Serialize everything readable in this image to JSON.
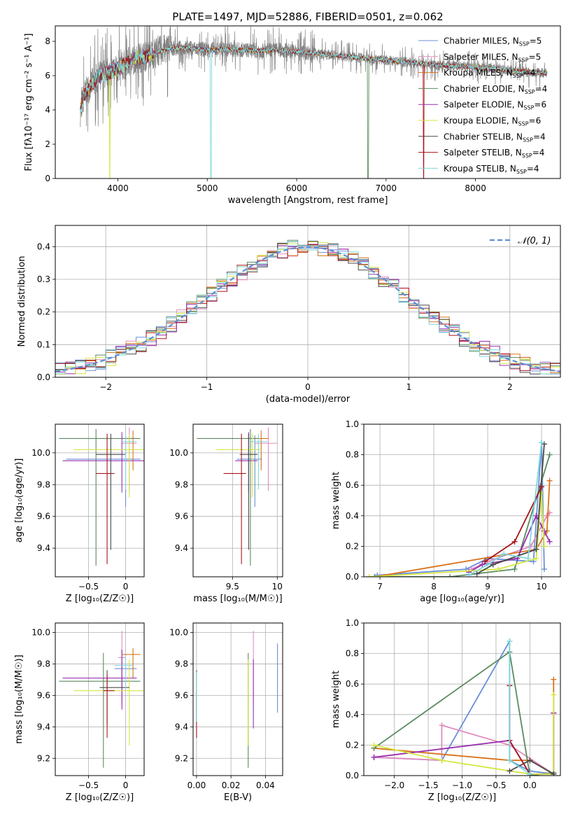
{
  "figure_title": "PLATE=1497, MJD=52886, FIBERID=0501, z=0.062",
  "colors": {
    "chabrier_miles": "#6a8fd8",
    "salpeter_miles": "#e18bbd",
    "kroupa_miles": "#d8731c",
    "chabrier_elodie": "#5a8a5f",
    "salpeter_elodie": "#9a2fb0",
    "kroupa_elodie": "#d4e640",
    "chabrier_stelib": "#4a4a4a",
    "salpeter_stelib": "#a8151c",
    "kroupa_stelib": "#80d8dc",
    "data": "#808080",
    "normal": "#5b8fd4"
  },
  "chart_data": [
    {
      "id": "spectrum",
      "type": "line",
      "title": "PLATE=1497, MJD=52886, FIBERID=0501, z=0.062",
      "xlabel": "wavelength [Angstrom, rest frame]",
      "ylabel": "Flux [fλ10⁻¹⁷ erg cm⁻² s⁻¹ A⁻¹]",
      "xlim": [
        3300,
        8950
      ],
      "ylim": [
        0,
        8.9
      ],
      "xticks": [
        4000,
        5000,
        6000,
        7000,
        8000
      ],
      "yticks": [
        0,
        2,
        4,
        6,
        8
      ],
      "grid": false,
      "legend_position": "right",
      "legend": [
        {
          "label": "Chabrier MILES, NSSP=5",
          "color": "chabrier_miles"
        },
        {
          "label": "Salpeter MILES, NSSP=5",
          "color": "salpeter_miles"
        },
        {
          "label": "Kroupa MILES, NSSP=4",
          "color": "kroupa_miles"
        },
        {
          "label": "Chabrier ELODIE, NSSP=4",
          "color": "chabrier_elodie"
        },
        {
          "label": "Salpeter ELODIE, NSSP=6",
          "color": "salpeter_elodie"
        },
        {
          "label": "Kroupa ELODIE, NSSP=6",
          "color": "kroupa_elodie"
        },
        {
          "label": "Chabrier STELIB, NSSP=4",
          "color": "chabrier_stelib"
        },
        {
          "label": "Salpeter STELIB, NSSP=4",
          "color": "salpeter_stelib"
        },
        {
          "label": "Kroupa STELIB, NSSP=4",
          "color": "kroupa_stelib"
        }
      ],
      "continuum": {
        "x": [
          3580,
          3620,
          3700,
          3800,
          3900,
          4000,
          4100,
          4200,
          4300,
          4400,
          4500,
          4600,
          4800,
          5000,
          5200,
          5400,
          5600,
          5800,
          6000,
          6200,
          6400,
          6600,
          6800,
          7000,
          7200,
          7400,
          7600,
          7800,
          8000,
          8200,
          8400,
          8600,
          8800
        ],
        "y": [
          3.9,
          4.8,
          5.5,
          6.0,
          6.2,
          6.4,
          6.7,
          7.0,
          7.1,
          7.3,
          7.5,
          7.6,
          7.6,
          7.5,
          7.55,
          7.5,
          7.45,
          7.5,
          7.4,
          7.3,
          7.2,
          7.1,
          7.0,
          6.9,
          6.8,
          6.7,
          6.6,
          6.55,
          6.5,
          6.4,
          6.3,
          6.2,
          6.15
        ]
      }
    },
    {
      "id": "residuals",
      "type": "bar",
      "xlabel": "(data-model)/error",
      "ylabel": "Normed distribution",
      "xlim": [
        -2.5,
        2.5
      ],
      "ylim": [
        0,
        0.465
      ],
      "xticks": [
        -2,
        -1,
        0,
        1,
        2
      ],
      "yticks": [
        0.0,
        0.1,
        0.2,
        0.3,
        0.4
      ],
      "grid": true,
      "legend_position": "top-right",
      "legend": [
        {
          "label": "𝒩(0, 1)",
          "color": "normal"
        }
      ],
      "bin_width": 0.1
    },
    {
      "id": "age_vs_Z",
      "type": "scatter",
      "xlabel": "Z [log₁₀(Z/Z☉)]",
      "ylabel": "age  [log₁₀(age/yr)]",
      "xlim": [
        -0.95,
        0.25
      ],
      "ylim": [
        9.22,
        10.18
      ],
      "xticks": [
        -0.5,
        0.0
      ],
      "yticks": [
        9.4,
        9.6,
        9.8,
        10.0
      ],
      "grid": true,
      "points": [
        {
          "series": "chabrier_miles",
          "x": 0.0,
          "y": 9.96,
          "xerr": [
            0.8,
            0.2
          ],
          "yerr": [
            0.3,
            0.15
          ]
        },
        {
          "series": "salpeter_miles",
          "x": 0.05,
          "y": 10.06,
          "xerr": [
            0.1,
            0.1
          ],
          "yerr": [
            0.3,
            0.1
          ]
        },
        {
          "series": "kroupa_miles",
          "x": 0.1,
          "y": 10.09,
          "xerr": [
            0.15,
            0.05
          ],
          "yerr": [
            0.2,
            0.05
          ]
        },
        {
          "series": "chabrier_elodie",
          "x": -0.4,
          "y": 10.09,
          "xerr": [
            0.5,
            0.6
          ],
          "yerr": [
            0.8,
            0.06
          ]
        },
        {
          "series": "salpeter_elodie",
          "x": -0.05,
          "y": 9.95,
          "xerr": [
            0.8,
            0.3
          ],
          "yerr": [
            0.2,
            0.18
          ]
        },
        {
          "series": "kroupa_elodie",
          "x": 0.05,
          "y": 10.02,
          "xerr": [
            0.75,
            0.25
          ],
          "yerr": [
            0.3,
            0.1
          ]
        },
        {
          "series": "chabrier_stelib",
          "x": -0.2,
          "y": 9.99,
          "xerr": [
            0.2,
            0.2
          ],
          "yerr": [
            0.6,
            0.13
          ]
        },
        {
          "series": "salpeter_stelib",
          "x": -0.25,
          "y": 9.87,
          "xerr": [
            0.15,
            0.1
          ],
          "yerr": [
            0.57,
            0.25
          ]
        },
        {
          "series": "kroupa_stelib",
          "x": 0.0,
          "y": 10.07,
          "xerr": [
            0.05,
            0.15
          ],
          "yerr": [
            0.3,
            0.05
          ]
        }
      ]
    },
    {
      "id": "age_vs_mass",
      "type": "scatter",
      "xlabel": "mass [log₁₀(M/M☉)]",
      "ylabel": "",
      "xlim": [
        9.06,
        10.06
      ],
      "ylim": [
        9.22,
        10.18
      ],
      "xticks": [
        9.5,
        10.0
      ],
      "yticks": [
        9.4,
        9.6,
        9.8,
        10.0
      ],
      "grid": true,
      "points": [
        {
          "series": "chabrier_miles",
          "x": 9.75,
          "y": 9.96,
          "xerr": [
            0.2,
            0.08
          ],
          "yerr": [
            0.3,
            0.15
          ]
        },
        {
          "series": "salpeter_miles",
          "x": 9.9,
          "y": 10.06,
          "xerr": [
            0.15,
            0.1
          ],
          "yerr": [
            0.3,
            0.1
          ]
        },
        {
          "series": "kroupa_miles",
          "x": 9.82,
          "y": 10.09,
          "xerr": [
            0.15,
            0.08
          ],
          "yerr": [
            0.2,
            0.05
          ]
        },
        {
          "series": "chabrier_elodie",
          "x": 9.7,
          "y": 10.09,
          "xerr": [
            0.6,
            0.1
          ],
          "yerr": [
            0.8,
            0.06
          ]
        },
        {
          "series": "salpeter_elodie",
          "x": 9.68,
          "y": 9.95,
          "xerr": [
            0.15,
            0.1
          ],
          "yerr": [
            0.2,
            0.18
          ]
        },
        {
          "series": "kroupa_elodie",
          "x": 9.72,
          "y": 10.02,
          "xerr": [
            0.4,
            0.1
          ],
          "yerr": [
            0.3,
            0.1
          ]
        },
        {
          "series": "chabrier_stelib",
          "x": 9.68,
          "y": 9.99,
          "xerr": [
            0.1,
            0.1
          ],
          "yerr": [
            0.6,
            0.13
          ]
        },
        {
          "series": "salpeter_stelib",
          "x": 9.6,
          "y": 9.87,
          "xerr": [
            0.2,
            0.05
          ],
          "yerr": [
            0.57,
            0.25
          ]
        },
        {
          "series": "kroupa_stelib",
          "x": 9.79,
          "y": 10.07,
          "xerr": [
            0.1,
            0.1
          ],
          "yerr": [
            0.3,
            0.05
          ]
        }
      ]
    },
    {
      "id": "weight_vs_age",
      "type": "line",
      "xlabel": "age  [log₁₀(age/yr)]",
      "ylabel": "mass weight",
      "xlim": [
        6.7,
        10.35
      ],
      "ylim": [
        0,
        1
      ],
      "xticks": [
        7,
        8,
        9,
        10
      ],
      "yticks": [
        0.0,
        0.2,
        0.4,
        0.6,
        0.8,
        1.0
      ],
      "grid": true,
      "series": [
        {
          "name": "chabrier_miles",
          "x": [
            6.95,
            8.6,
            9.0,
            9.85,
            10.0,
            10.05
          ],
          "y": [
            0.01,
            0.05,
            0.12,
            0.1,
            0.88,
            0.05
          ]
        },
        {
          "name": "salpeter_miles",
          "x": [
            8.7,
            9.0,
            9.8,
            10.1,
            10.15
          ],
          "y": [
            0.05,
            0.1,
            0.2,
            0.4,
            0.42
          ]
        },
        {
          "name": "kroupa_miles",
          "x": [
            6.9,
            9.9,
            10.1,
            10.15
          ],
          "y": [
            0.0,
            0.18,
            0.3,
            0.63
          ]
        },
        {
          "name": "chabrier_elodie",
          "x": [
            6.9,
            8.3,
            9.5,
            10.15
          ],
          "y": [
            0.0,
            0.0,
            0.05,
            0.8
          ]
        },
        {
          "name": "salpeter_elodie",
          "x": [
            8.65,
            8.9,
            9.55,
            9.9,
            10.05,
            10.15
          ],
          "y": [
            0.03,
            0.08,
            0.12,
            0.4,
            0.3,
            0.23
          ]
        },
        {
          "name": "kroupa_elodie",
          "x": [
            6.8,
            9.2,
            9.9,
            10.0,
            10.05
          ],
          "y": [
            0.0,
            0.05,
            0.12,
            0.55,
            0.2
          ]
        },
        {
          "name": "chabrier_stelib",
          "x": [
            8.8,
            9.1,
            9.9,
            10.05
          ],
          "y": [
            0.02,
            0.08,
            0.18,
            0.87
          ]
        },
        {
          "name": "salpeter_stelib",
          "x": [
            8.95,
            9.5,
            10.0
          ],
          "y": [
            0.1,
            0.23,
            0.59
          ]
        },
        {
          "name": "kroupa_stelib",
          "x": [
            8.65,
            9.0,
            9.3,
            9.75,
            10.0
          ],
          "y": [
            0.01,
            0.08,
            0.15,
            0.12,
            0.88
          ]
        }
      ]
    },
    {
      "id": "mass_vs_Z",
      "type": "scatter",
      "xlabel": "Z [log₁₀(Z/Z☉)]",
      "ylabel": "mass [log₁₀(M/M☉)]",
      "xlim": [
        -0.95,
        0.25
      ],
      "ylim": [
        9.09,
        10.06
      ],
      "xticks": [
        -0.5,
        0.0
      ],
      "yticks": [
        9.2,
        9.4,
        9.6,
        9.8,
        10.0
      ],
      "grid": true,
      "points": [
        {
          "series": "chabrier_miles",
          "x": -0.05,
          "y": 9.77,
          "xerr": [
            0.1,
            0.2
          ],
          "yerr": [
            0.2,
            0.06
          ]
        },
        {
          "series": "salpeter_miles",
          "x": -0.05,
          "y": 9.84,
          "xerr": [
            0.05,
            0.05
          ],
          "yerr": [
            0.3,
            0.17
          ]
        },
        {
          "series": "kroupa_miles",
          "x": 0.1,
          "y": 9.86,
          "xerr": [
            0.15,
            0.1
          ],
          "yerr": [
            0.15,
            0.04
          ]
        },
        {
          "series": "chabrier_elodie",
          "x": -0.3,
          "y": 9.69,
          "xerr": [
            0.6,
            0.5
          ],
          "yerr": [
            0.55,
            0.18
          ]
        },
        {
          "series": "salpeter_elodie",
          "x": -0.05,
          "y": 9.71,
          "xerr": [
            0.8,
            0.2
          ],
          "yerr": [
            0.2,
            0.18
          ]
        },
        {
          "series": "kroupa_elodie",
          "x": 0.05,
          "y": 9.63,
          "xerr": [
            0.75,
            0.2
          ],
          "yerr": [
            0.35,
            0.2
          ]
        },
        {
          "series": "chabrier_stelib",
          "x": -0.25,
          "y": 9.65,
          "xerr": [
            0.1,
            0.3
          ],
          "yerr": [
            0.23,
            0.11
          ]
        },
        {
          "series": "salpeter_stelib",
          "x": -0.25,
          "y": 9.63,
          "xerr": [
            0.05,
            0.1
          ],
          "yerr": [
            0.3,
            0.1
          ]
        },
        {
          "series": "kroupa_stelib",
          "x": 0.0,
          "y": 9.79,
          "xerr": [
            0.15,
            0.1
          ],
          "yerr": [
            0.15,
            0.06
          ]
        }
      ]
    },
    {
      "id": "mass_vs_ebv",
      "type": "scatter",
      "xlabel": "E(B-V)",
      "ylabel": "",
      "xlim": [
        -0.002,
        0.05
      ],
      "ylim": [
        9.09,
        10.06
      ],
      "xticks": [
        0.0,
        0.02,
        0.04
      ],
      "yticks": [
        9.2,
        9.4,
        9.6,
        9.8,
        10.0
      ],
      "grid": true,
      "points": [
        {
          "series": "chabrier_miles",
          "x": 0.047,
          "y": 9.77,
          "xerr": [
            0,
            0
          ],
          "yerr": [
            0.28,
            0.16
          ]
        },
        {
          "series": "salpeter_miles",
          "x": 0.033,
          "y": 9.84,
          "xerr": [
            0,
            0
          ],
          "yerr": [
            0.3,
            0.17
          ]
        },
        {
          "series": "kroupa_miles",
          "x": 0.0,
          "y": 9.62,
          "xerr": [
            0,
            0
          ],
          "yerr": [
            0.15,
            0.12
          ]
        },
        {
          "series": "chabrier_elodie",
          "x": 0.03,
          "y": 9.69,
          "xerr": [
            0,
            0
          ],
          "yerr": [
            0.55,
            0.18
          ]
        },
        {
          "series": "salpeter_elodie",
          "x": 0.033,
          "y": 9.71,
          "xerr": [
            0,
            0
          ],
          "yerr": [
            0.32,
            0.12
          ]
        },
        {
          "series": "kroupa_elodie",
          "x": 0.03,
          "y": 9.63,
          "xerr": [
            0,
            0
          ],
          "yerr": [
            0.35,
            0.2
          ]
        },
        {
          "series": "chabrier_stelib",
          "x": 0.0,
          "y": 9.65,
          "xerr": [
            0,
            0
          ],
          "yerr": [
            0.23,
            0.11
          ]
        },
        {
          "series": "salpeter_stelib",
          "x": 0.0,
          "y": 9.53,
          "xerr": [
            0,
            0
          ],
          "yerr": [
            0.2,
            0.1
          ]
        },
        {
          "series": "kroupa_stelib",
          "x": 0.0,
          "y": 9.6,
          "xerr": [
            0,
            0
          ],
          "yerr": [
            0.17,
            0.15
          ]
        }
      ]
    },
    {
      "id": "weight_vs_Z",
      "type": "line",
      "xlabel": "Z [log₁₀(Z/Z☉)]",
      "ylabel": "mass weight",
      "xlim": [
        -2.45,
        0.45
      ],
      "ylim": [
        0,
        1
      ],
      "xticks": [
        -2.0,
        -1.5,
        -1.0,
        -0.5,
        0.0
      ],
      "yticks": [
        0.0,
        0.2,
        0.4,
        0.6,
        0.8,
        1.0
      ],
      "grid": true,
      "series": [
        {
          "name": "chabrier_miles",
          "x": [
            -2.3,
            -1.3,
            -0.3,
            -0.3,
            0.0,
            0.35
          ],
          "y": [
            0.12,
            0.1,
            0.88,
            0.1,
            0.03,
            0.01
          ]
        },
        {
          "name": "salpeter_miles",
          "x": [
            -2.3,
            -1.3,
            -1.3,
            -0.3,
            0.35,
            0.35
          ],
          "y": [
            0.12,
            0.1,
            0.33,
            0.2,
            0.01,
            0.41
          ]
        },
        {
          "name": "kroupa_miles",
          "x": [
            -2.3,
            -0.3,
            0.0,
            0.35,
            0.35
          ],
          "y": [
            0.18,
            0.1,
            0.1,
            0.01,
            0.63
          ]
        },
        {
          "name": "chabrier_elodie",
          "x": [
            -2.3,
            -0.3,
            0.0,
            0.35
          ],
          "y": [
            0.18,
            0.81,
            0.0,
            0.02
          ]
        },
        {
          "name": "salpeter_elodie",
          "x": [
            -2.3,
            -0.3,
            0.0,
            0.35,
            0.35
          ],
          "y": [
            0.12,
            0.23,
            0.01,
            0.01,
            0.41
          ]
        },
        {
          "name": "kroupa_elodie",
          "x": [
            -2.3,
            -1.3,
            0.0,
            0.35,
            0.35
          ],
          "y": [
            0.2,
            0.1,
            0.01,
            0.01,
            0.53
          ]
        },
        {
          "name": "chabrier_stelib",
          "x": [
            -0.3,
            0.0,
            0.35
          ],
          "y": [
            0.03,
            0.1,
            0.01
          ]
        },
        {
          "name": "salpeter_stelib",
          "x": [
            -0.3,
            -0.3,
            0.0
          ],
          "y": [
            0.59,
            0.23,
            0.01
          ]
        },
        {
          "name": "kroupa_stelib",
          "x": [
            -0.3,
            -0.3,
            0.0
          ],
          "y": [
            0.88,
            0.1,
            0.01
          ]
        }
      ]
    }
  ]
}
